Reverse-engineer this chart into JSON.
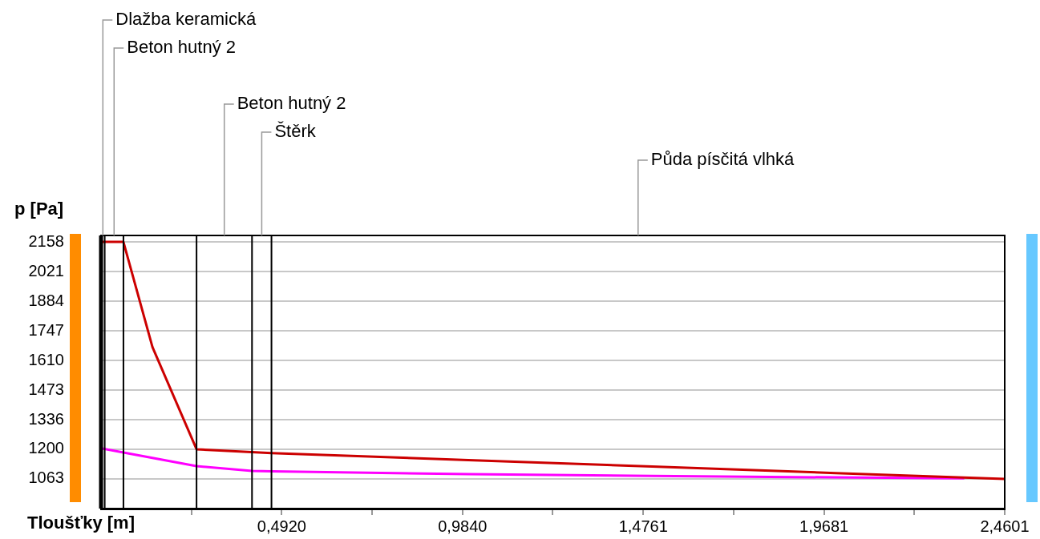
{
  "chart_data": {
    "type": "line",
    "xlabel": "Tloušťky [m]",
    "ylabel": "p [Pa]",
    "xlim": [
      0,
      2.4601
    ],
    "ylim": [
      926,
      2188
    ],
    "xticks": [
      {
        "value": 0.246,
        "label": null
      },
      {
        "value": 0.492,
        "label": "0,4920"
      },
      {
        "value": 0.738,
        "label": null
      },
      {
        "value": 0.984,
        "label": "0,9840"
      },
      {
        "value": 1.23,
        "label": null
      },
      {
        "value": 1.4761,
        "label": "1,4761"
      },
      {
        "value": 1.722,
        "label": null
      },
      {
        "value": 1.9681,
        "label": "1,9681"
      },
      {
        "value": 2.214,
        "label": null
      },
      {
        "value": 2.4601,
        "label": "2,4601"
      }
    ],
    "yticks": [
      1063,
      1200,
      1336,
      1473,
      1610,
      1747,
      1884,
      2021,
      2158
    ],
    "grid": "y",
    "legend": false,
    "marker": "none",
    "line_style": "solid",
    "series": [
      {
        "color": "#cc0000",
        "x": [
          0,
          0.061,
          0.14,
          0.26,
          0.464,
          1.0,
          1.5,
          2.0,
          2.4601
        ],
        "values": [
          2158,
          2158,
          1672,
          1200,
          1182,
          1150,
          1120,
          1090,
          1063
        ]
      },
      {
        "color": "#ff00ff",
        "x": [
          0,
          0.061,
          0.26,
          0.411,
          0.464,
          1.0,
          1.5,
          2.0,
          2.35
        ],
        "values": [
          1205,
          1185,
          1122,
          1100,
          1098,
          1085,
          1077,
          1070,
          1066
        ]
      }
    ],
    "ref_lines": [
      {
        "axis": "x",
        "value": 0.01
      },
      {
        "axis": "x",
        "value": 0.061
      },
      {
        "axis": "x",
        "value": 0.26
      },
      {
        "axis": "x",
        "value": 0.411
      },
      {
        "axis": "x",
        "value": 0.464
      }
    ],
    "annotations": [
      {
        "text": "Dlažba keramická",
        "x": 0.005,
        "y": 2188
      },
      "Beton hutný 2",
      null,
      "Beton hutný 2",
      "Štěrk",
      "Půda písčitá vlhká"
    ]
  }
}
